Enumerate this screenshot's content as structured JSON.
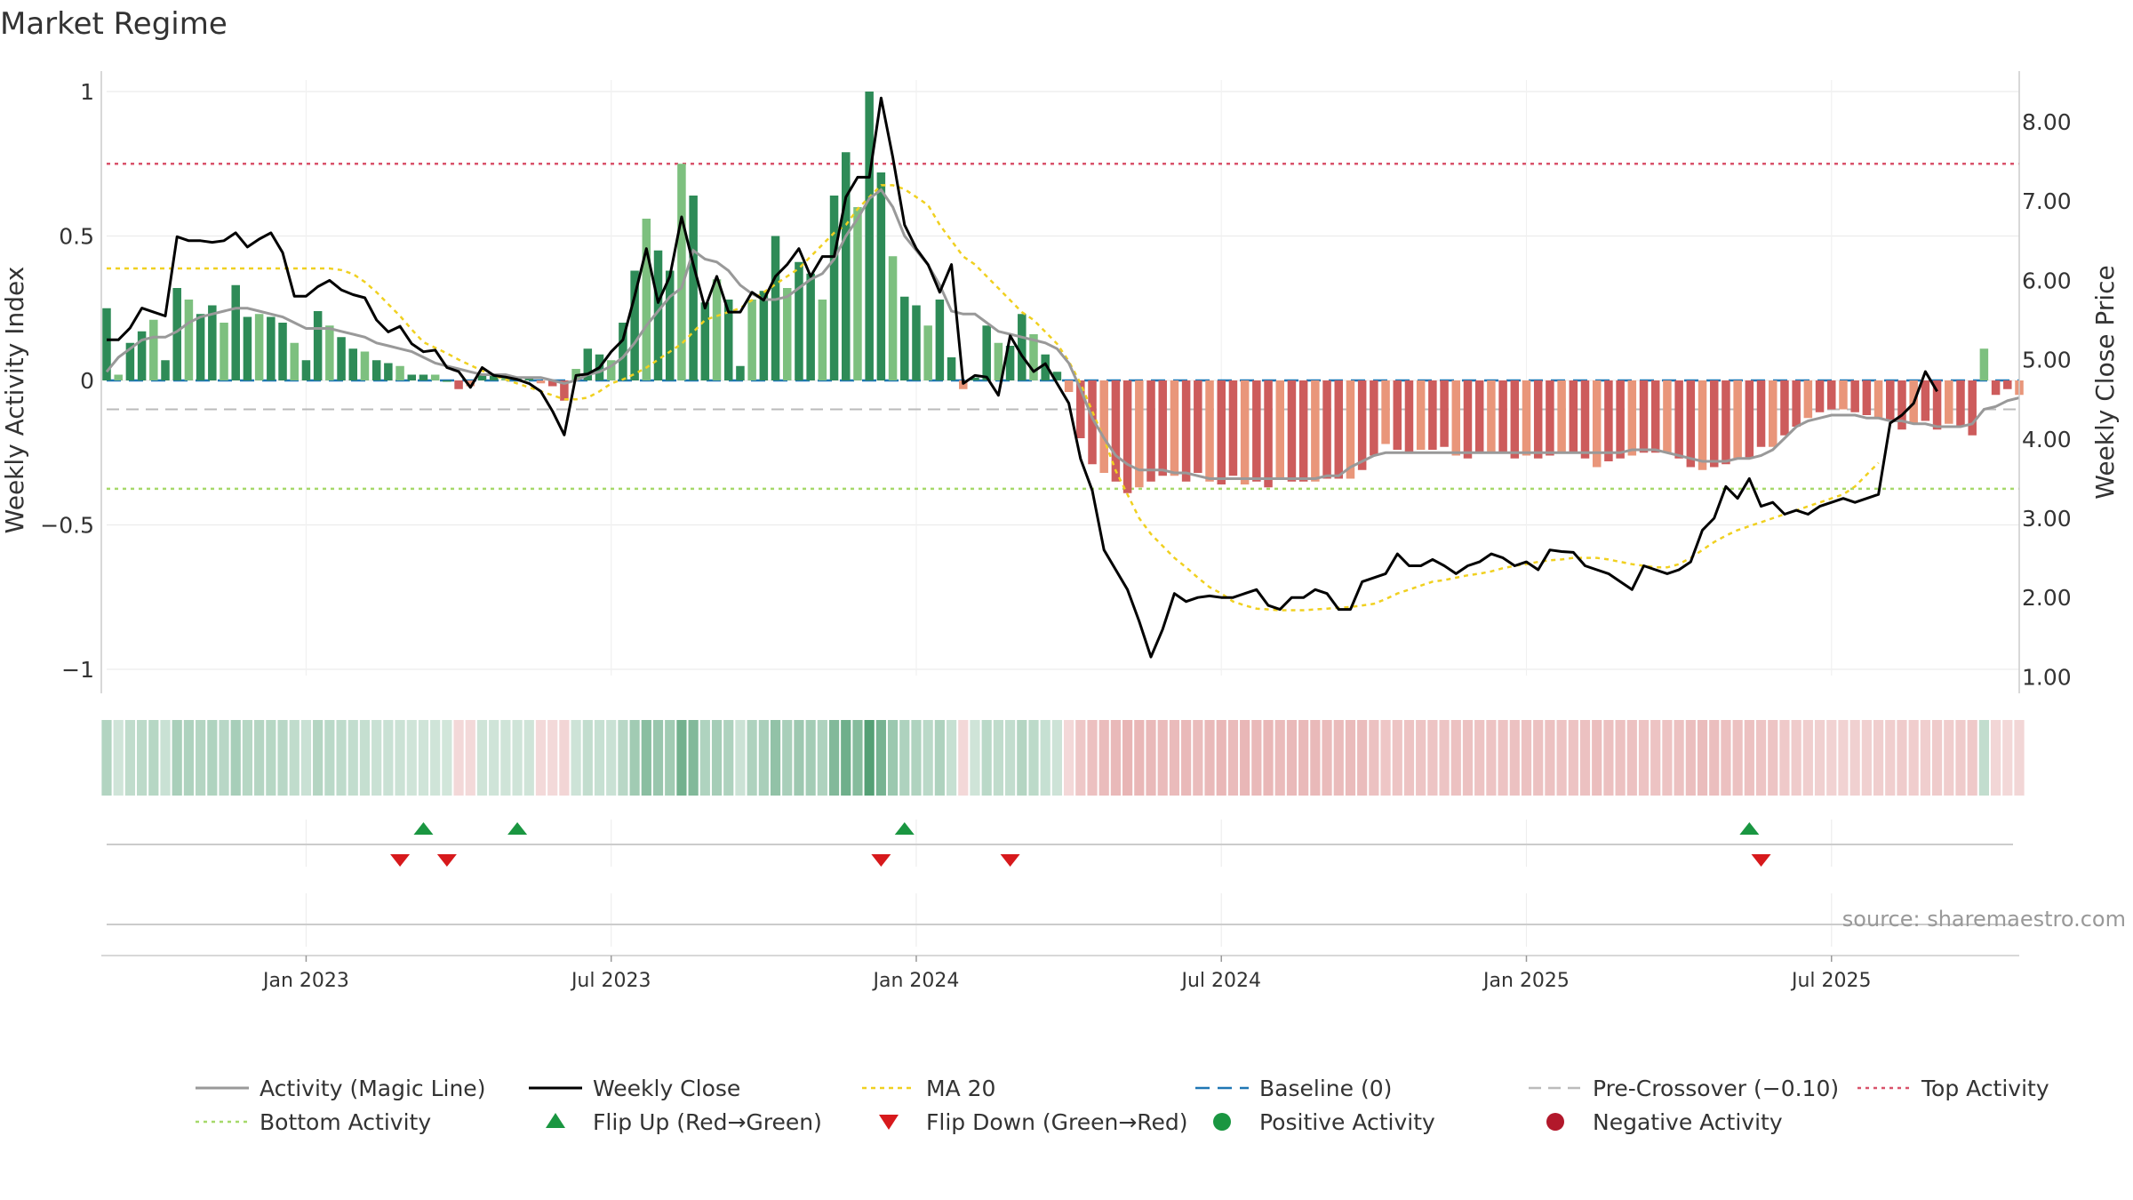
{
  "title": "Market Regime",
  "source": "source: sharemaestro.com",
  "colors": {
    "strong_green": "#2e8b57",
    "light_green": "#7dc07f",
    "strong_red": "#cd5c5c",
    "light_red": "#e9967a",
    "close_line": "#000000",
    "magic_line": "#999999",
    "ma20": "#f0d020",
    "baseline": "#1f77b4",
    "pre_crossover": "#bbbbbb",
    "top_activity": "#d9536b",
    "bottom_activity": "#a6d96a",
    "flip_up": "#1a9641",
    "flip_down": "#d7191c",
    "positive_dot": "#1a9641",
    "negative_dot": "#b2182b"
  },
  "chart_data": {
    "type": "bar",
    "title": "Market Regime",
    "y_left_label": "Weekly Activity Index",
    "y_right_label": "Weekly Close Price",
    "y_left_range": [
      -1.05,
      1.05
    ],
    "y_right_range": [
      0.85,
      8.45
    ],
    "y_left_ticks": [
      {
        "value": 1,
        "label": "1"
      },
      {
        "value": 0.5,
        "label": "0.5"
      },
      {
        "value": 0,
        "label": "0"
      },
      {
        "value": -0.5,
        "label": "−0.5"
      },
      {
        "value": -1,
        "label": "−1"
      }
    ],
    "y_right_ticks": [
      {
        "value": 8,
        "label": "8.00"
      },
      {
        "value": 7,
        "label": "7.00"
      },
      {
        "value": 6,
        "label": "6.00"
      },
      {
        "value": 5,
        "label": "5.00"
      },
      {
        "value": 4,
        "label": "4.00"
      },
      {
        "value": 3,
        "label": "3.00"
      },
      {
        "value": 2,
        "label": "2.00"
      },
      {
        "value": 1,
        "label": "1.00"
      }
    ],
    "x_ticks": [
      {
        "index": 17,
        "label": "Jan 2023"
      },
      {
        "index": 43,
        "label": "Jul 2023"
      },
      {
        "index": 69,
        "label": "Jan 2024"
      },
      {
        "index": 95,
        "label": "Jul 2024"
      },
      {
        "index": 121,
        "label": "Jan 2025"
      },
      {
        "index": 147,
        "label": "Jul 2025"
      }
    ],
    "reference_lines": {
      "top_activity": 0.75,
      "bottom_activity": -0.375,
      "baseline": 0,
      "pre_crossover": -0.1
    },
    "activity": [
      0.25,
      0.02,
      0.13,
      0.17,
      0.21,
      0.07,
      0.32,
      0.28,
      0.23,
      0.26,
      0.2,
      0.33,
      0.22,
      0.23,
      0.22,
      0.2,
      0.13,
      0.07,
      0.24,
      0.19,
      0.15,
      0.11,
      0.1,
      0.07,
      0.06,
      0.05,
      0.02,
      0.02,
      0.02,
      0.0,
      -0.03,
      -0.02,
      0.02,
      0.02,
      0.01,
      0.01,
      0.01,
      -0.01,
      -0.02,
      -0.07,
      0.04,
      0.11,
      0.09,
      0.07,
      0.2,
      0.38,
      0.56,
      0.45,
      0.38,
      0.75,
      0.64,
      0.27,
      0.35,
      0.28,
      0.05,
      0.28,
      0.31,
      0.5,
      0.32,
      0.41,
      0.37,
      0.28,
      0.64,
      0.79,
      0.6,
      1.0,
      0.72,
      0.43,
      0.29,
      0.26,
      0.19,
      0.28,
      0.08,
      -0.03,
      0.01,
      0.19,
      0.13,
      0.12,
      0.23,
      0.16,
      0.09,
      0.03,
      -0.04,
      -0.2,
      -0.29,
      -0.32,
      -0.35,
      -0.39,
      -0.37,
      -0.35,
      -0.33,
      -0.33,
      -0.35,
      -0.32,
      -0.35,
      -0.36,
      -0.33,
      -0.36,
      -0.35,
      -0.37,
      -0.34,
      -0.35,
      -0.35,
      -0.35,
      -0.34,
      -0.34,
      -0.34,
      -0.31,
      -0.26,
      -0.22,
      -0.24,
      -0.25,
      -0.24,
      -0.24,
      -0.23,
      -0.26,
      -0.27,
      -0.25,
      -0.25,
      -0.25,
      -0.27,
      -0.26,
      -0.27,
      -0.26,
      -0.25,
      -0.25,
      -0.27,
      -0.3,
      -0.28,
      -0.27,
      -0.26,
      -0.25,
      -0.25,
      -0.25,
      -0.27,
      -0.3,
      -0.31,
      -0.3,
      -0.29,
      -0.27,
      -0.27,
      -0.23,
      -0.23,
      -0.19,
      -0.16,
      -0.13,
      -0.11,
      -0.1,
      -0.1,
      -0.11,
      -0.12,
      -0.13,
      -0.14,
      -0.17,
      -0.15,
      -0.14,
      -0.17,
      -0.15,
      -0.16,
      -0.19,
      0.11,
      -0.05,
      -0.03,
      -0.05
    ],
    "magic_line": [
      0.03,
      0.08,
      0.11,
      0.14,
      0.15,
      0.15,
      0.17,
      0.2,
      0.22,
      0.23,
      0.24,
      0.25,
      0.25,
      0.24,
      0.23,
      0.22,
      0.2,
      0.18,
      0.18,
      0.18,
      0.17,
      0.16,
      0.15,
      0.13,
      0.12,
      0.11,
      0.1,
      0.08,
      0.06,
      0.05,
      0.04,
      0.03,
      0.02,
      0.02,
      0.02,
      0.01,
      0.01,
      0.01,
      0.0,
      -0.01,
      0.0,
      0.02,
      0.03,
      0.05,
      0.08,
      0.13,
      0.19,
      0.24,
      0.29,
      0.32,
      0.45,
      0.42,
      0.41,
      0.38,
      0.33,
      0.3,
      0.28,
      0.28,
      0.29,
      0.32,
      0.35,
      0.37,
      0.42,
      0.5,
      0.56,
      0.63,
      0.66,
      0.6,
      0.5,
      0.45,
      0.4,
      0.33,
      0.24,
      0.23,
      0.23,
      0.2,
      0.17,
      0.16,
      0.15,
      0.14,
      0.13,
      0.11,
      0.06,
      -0.03,
      -0.13,
      -0.2,
      -0.26,
      -0.29,
      -0.31,
      -0.31,
      -0.31,
      -0.32,
      -0.32,
      -0.33,
      -0.34,
      -0.34,
      -0.34,
      -0.34,
      -0.34,
      -0.34,
      -0.34,
      -0.34,
      -0.34,
      -0.34,
      -0.33,
      -0.33,
      -0.3,
      -0.28,
      -0.26,
      -0.25,
      -0.25,
      -0.25,
      -0.25,
      -0.25,
      -0.25,
      -0.25,
      -0.25,
      -0.25,
      -0.25,
      -0.25,
      -0.25,
      -0.25,
      -0.25,
      -0.25,
      -0.25,
      -0.25,
      -0.25,
      -0.25,
      -0.25,
      -0.25,
      -0.24,
      -0.24,
      -0.24,
      -0.25,
      -0.26,
      -0.27,
      -0.28,
      -0.28,
      -0.28,
      -0.27,
      -0.27,
      -0.26,
      -0.24,
      -0.2,
      -0.16,
      -0.14,
      -0.13,
      -0.12,
      -0.12,
      -0.12,
      -0.13,
      -0.13,
      -0.14,
      -0.14,
      -0.15,
      -0.15,
      -0.16,
      -0.16,
      -0.16,
      -0.15,
      -0.1,
      -0.09,
      -0.07,
      -0.06
    ],
    "weekly_close": [
      5.25,
      5.25,
      5.4,
      5.65,
      5.6,
      5.55,
      6.55,
      6.5,
      6.5,
      6.48,
      6.5,
      6.6,
      6.42,
      6.52,
      6.6,
      6.35,
      5.8,
      5.8,
      5.92,
      6.0,
      5.88,
      5.82,
      5.78,
      5.5,
      5.35,
      5.42,
      5.2,
      5.1,
      5.12,
      4.9,
      4.85,
      4.65,
      4.9,
      4.8,
      4.78,
      4.75,
      4.7,
      4.6,
      4.35,
      4.05,
      4.8,
      4.82,
      4.9,
      5.1,
      5.25,
      5.8,
      6.4,
      5.72,
      6.05,
      6.8,
      6.2,
      5.65,
      6.05,
      5.6,
      5.6,
      5.85,
      5.75,
      6.05,
      6.2,
      6.4,
      6.05,
      6.3,
      6.3,
      7.05,
      7.3,
      7.3,
      8.3,
      7.55,
      6.7,
      6.4,
      6.2,
      5.85,
      6.2,
      4.7,
      4.8,
      4.78,
      4.55,
      5.3,
      5.05,
      4.85,
      4.95,
      4.7,
      4.45,
      3.75,
      3.35,
      2.6,
      2.35,
      2.1,
      1.7,
      1.25,
      1.6,
      2.05,
      1.95,
      2.0,
      2.02,
      2.0,
      2.0,
      2.05,
      2.1,
      1.9,
      1.85,
      2.0,
      2.0,
      2.1,
      2.05,
      1.85,
      1.85,
      2.2,
      2.25,
      2.3,
      2.55,
      2.4,
      2.4,
      2.48,
      2.4,
      2.3,
      2.4,
      2.45,
      2.55,
      2.5,
      2.4,
      2.45,
      2.35,
      2.6,
      2.58,
      2.57,
      2.4,
      2.35,
      2.3,
      2.2,
      2.1,
      2.4,
      2.35,
      2.3,
      2.35,
      2.45,
      2.85,
      3.0,
      3.4,
      3.25,
      3.5,
      3.15,
      3.2,
      3.05,
      3.1,
      3.05,
      3.15,
      3.2,
      3.25,
      3.2,
      3.25,
      3.3,
      4.2,
      4.3,
      4.45,
      4.85,
      4.6
    ],
    "ma20": [
      6.15,
      6.15,
      6.15,
      6.15,
      6.15,
      6.15,
      6.15,
      6.15,
      6.15,
      6.15,
      6.15,
      6.15,
      6.15,
      6.15,
      6.15,
      6.15,
      6.15,
      6.15,
      6.15,
      6.15,
      6.13,
      6.08,
      5.98,
      5.85,
      5.7,
      5.55,
      5.38,
      5.22,
      5.15,
      5.08,
      5.0,
      4.93,
      4.86,
      4.8,
      4.75,
      4.7,
      4.65,
      4.6,
      4.55,
      4.5,
      4.5,
      4.52,
      4.6,
      4.7,
      4.75,
      4.82,
      4.9,
      5.0,
      5.1,
      5.2,
      5.35,
      5.5,
      5.55,
      5.6,
      5.65,
      5.75,
      5.85,
      5.95,
      6.05,
      6.15,
      6.3,
      6.45,
      6.6,
      6.7,
      6.9,
      7.05,
      7.2,
      7.2,
      7.15,
      7.05,
      6.95,
      6.7,
      6.5,
      6.3,
      6.2,
      6.05,
      5.9,
      5.75,
      5.6,
      5.5,
      5.35,
      5.2,
      4.98,
      4.7,
      4.35,
      4.0,
      3.6,
      3.3,
      3.0,
      2.8,
      2.65,
      2.5,
      2.38,
      2.25,
      2.13,
      2.05,
      1.95,
      1.9,
      1.86,
      1.85,
      1.84,
      1.84,
      1.84,
      1.85,
      1.86,
      1.87,
      1.88,
      1.9,
      1.92,
      1.98,
      2.05,
      2.1,
      2.15,
      2.2,
      2.22,
      2.25,
      2.28,
      2.3,
      2.33,
      2.37,
      2.4,
      2.42,
      2.45,
      2.47,
      2.48,
      2.5,
      2.5,
      2.5,
      2.48,
      2.45,
      2.42,
      2.4,
      2.38,
      2.38,
      2.42,
      2.5,
      2.6,
      2.7,
      2.78,
      2.85,
      2.9,
      2.95,
      3.0,
      3.05,
      3.1,
      3.15,
      3.2,
      3.25,
      3.3,
      3.4,
      3.55,
      3.7
    ],
    "flip_up": [
      27,
      35,
      68,
      140
    ],
    "flip_down": [
      25,
      29,
      66,
      77,
      141
    ],
    "legend": [
      {
        "key": "magic",
        "label": "Activity (Magic Line)"
      },
      {
        "key": "close",
        "label": "Weekly Close"
      },
      {
        "key": "ma20",
        "label": "MA 20"
      },
      {
        "key": "baseline",
        "label": "Baseline (0)"
      },
      {
        "key": "pre",
        "label": "Pre-Crossover (−0.10)"
      },
      {
        "key": "top",
        "label": "Top Activity"
      },
      {
        "key": "bottom",
        "label": "Bottom Activity"
      },
      {
        "key": "flipup",
        "label": "Flip Up (Red→Green)"
      },
      {
        "key": "flipdown",
        "label": "Flip Down (Green→Red)"
      },
      {
        "key": "pos",
        "label": "Positive Activity"
      },
      {
        "key": "neg",
        "label": "Negative Activity"
      }
    ]
  }
}
